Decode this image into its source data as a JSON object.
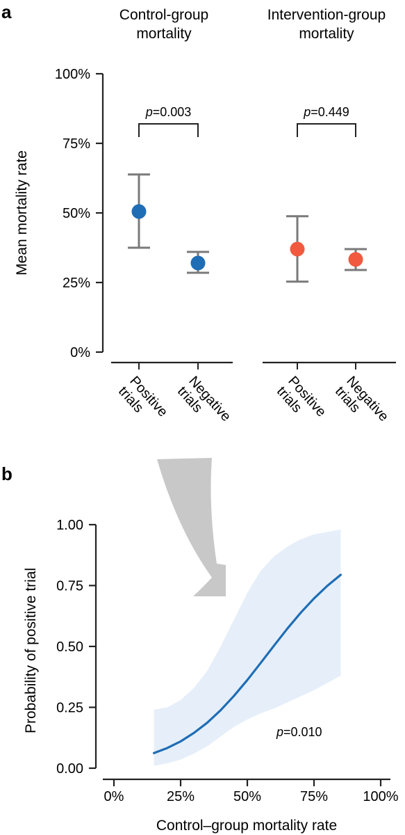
{
  "chart_data": [
    {
      "panel": "a",
      "type": "scatter",
      "ylabel": "Mean mortality rate",
      "ylim": [
        0,
        100
      ],
      "yticks": [
        "0%",
        "25%",
        "50%",
        "75%",
        "100%"
      ],
      "categories": [
        "Positive trials",
        "Negative trials"
      ],
      "groups": [
        {
          "title": "Control-group mortality",
          "color": "#1f6db5",
          "points": [
            {
              "category": "Positive trials",
              "mean": 50.5,
              "lower": 37.5,
              "upper": 63.8
            },
            {
              "category": "Negative trials",
              "mean": 32.0,
              "lower": 28.5,
              "upper": 36.0
            }
          ],
          "comparison": {
            "p_label": "p",
            "p_value": "=0.003"
          }
        },
        {
          "title": "Intervention-group mortality",
          "color": "#f15a3f",
          "points": [
            {
              "category": "Positive trials",
              "mean": 37.0,
              "lower": 25.3,
              "upper": 48.8
            },
            {
              "category": "Negative trials",
              "mean": 33.3,
              "lower": 29.5,
              "upper": 37.0
            }
          ],
          "comparison": {
            "p_label": "p",
            "p_value": "=0.449"
          }
        }
      ]
    },
    {
      "panel": "b",
      "type": "line",
      "xlabel": "Control–group mortality rate",
      "ylabel": "Probability of positive trial",
      "xlim": [
        0,
        100
      ],
      "ylim": [
        0,
        1
      ],
      "xticks": [
        "0%",
        "25%",
        "50%",
        "75%",
        "100%"
      ],
      "yticks": [
        "0.00",
        "0.25",
        "0.50",
        "0.75",
        "1.00"
      ],
      "line_color": "#1f6db5",
      "band_color": "#e6eff9",
      "x": [
        15,
        20,
        25,
        30,
        35,
        40,
        45,
        50,
        55,
        60,
        65,
        70,
        75,
        80,
        85
      ],
      "y": [
        0.062,
        0.083,
        0.11,
        0.145,
        0.187,
        0.238,
        0.297,
        0.362,
        0.432,
        0.503,
        0.573,
        0.638,
        0.697,
        0.749,
        0.794
      ],
      "ci_lower": [
        0.01,
        0.02,
        0.035,
        0.06,
        0.09,
        0.13,
        0.17,
        0.2,
        0.225,
        0.245,
        0.27,
        0.295,
        0.32,
        0.35,
        0.38
      ],
      "ci_upper": [
        0.24,
        0.25,
        0.28,
        0.33,
        0.4,
        0.5,
        0.61,
        0.72,
        0.81,
        0.87,
        0.91,
        0.94,
        0.96,
        0.97,
        0.98
      ],
      "annotation": {
        "p_label": "p",
        "p_value": "=0.010"
      }
    }
  ],
  "panel_labels": [
    "a",
    "b"
  ],
  "arrow_color": "#c8c8c8"
}
